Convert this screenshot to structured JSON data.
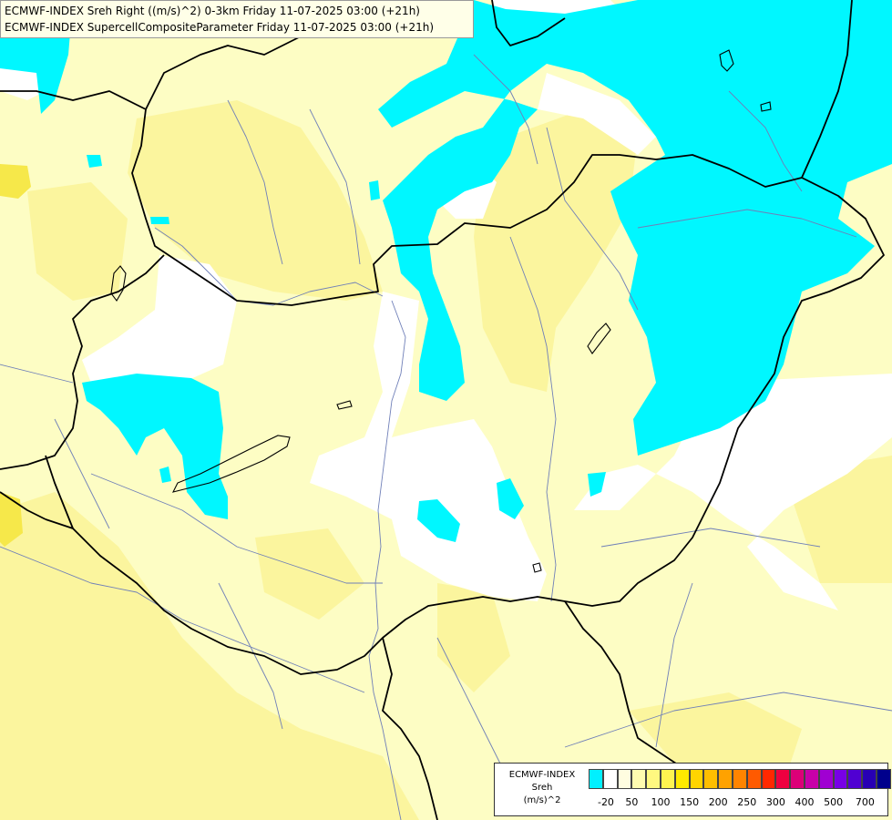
{
  "title": {
    "line1": "ECMWF-INDEX Sreh Right ((m/s)^2) 0-3km Friday 11-07-2025 03:00 (+21h)",
    "line2": "ECMWF-INDEX SupercellCompositeParameter Friday 11-07-2025 03:00 (+21h)"
  },
  "colors": {
    "background_yellow": "#fdfdc4",
    "yellow_mid": "#fbf59e",
    "yellow_strong": "#f6e84a",
    "cyan": "#00f7ff",
    "white": "#ffffff",
    "border_black": "#000000",
    "river_blue": "#6f7fb8"
  },
  "legend": {
    "source": "ECMWF-INDEX",
    "variable": "Sreh",
    "unit": "(m/s)^2",
    "swatch_colors": [
      "#00f0ff",
      "#ffffff",
      "#fffde0",
      "#fffbb0",
      "#fff880",
      "#fff450",
      "#ffea00",
      "#ffd400",
      "#ffbe00",
      "#ffa200",
      "#ff8400",
      "#ff5a00",
      "#ff2800",
      "#ee0040",
      "#dc0078",
      "#c800a8",
      "#a000d2",
      "#7800e6",
      "#5000d2",
      "#2800b4",
      "#00008c"
    ],
    "ticks": [
      "-20",
      "50",
      "100",
      "150",
      "200",
      "250",
      "300",
      "400",
      "500",
      "700"
    ]
  }
}
